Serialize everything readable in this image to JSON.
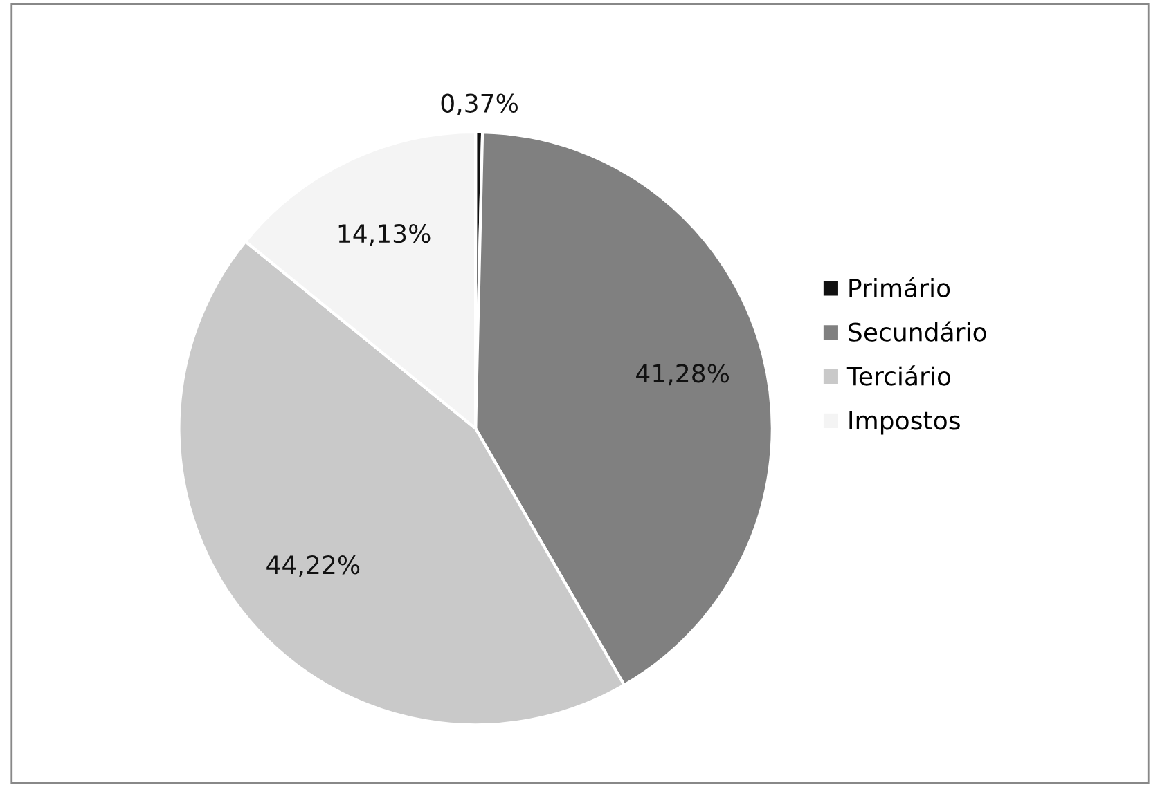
{
  "chart_data": {
    "type": "pie",
    "categories": [
      "Primário",
      "Secundário",
      "Terciário",
      "Impostos"
    ],
    "values": [
      0.37,
      41.28,
      44.22,
      14.13
    ],
    "value_labels": [
      "0,37%",
      "41,28%",
      "44,22%",
      "14,13%"
    ],
    "colors": [
      "#111111",
      "#808080",
      "#c9c9c9",
      "#f4f4f4"
    ],
    "legend": "right"
  }
}
